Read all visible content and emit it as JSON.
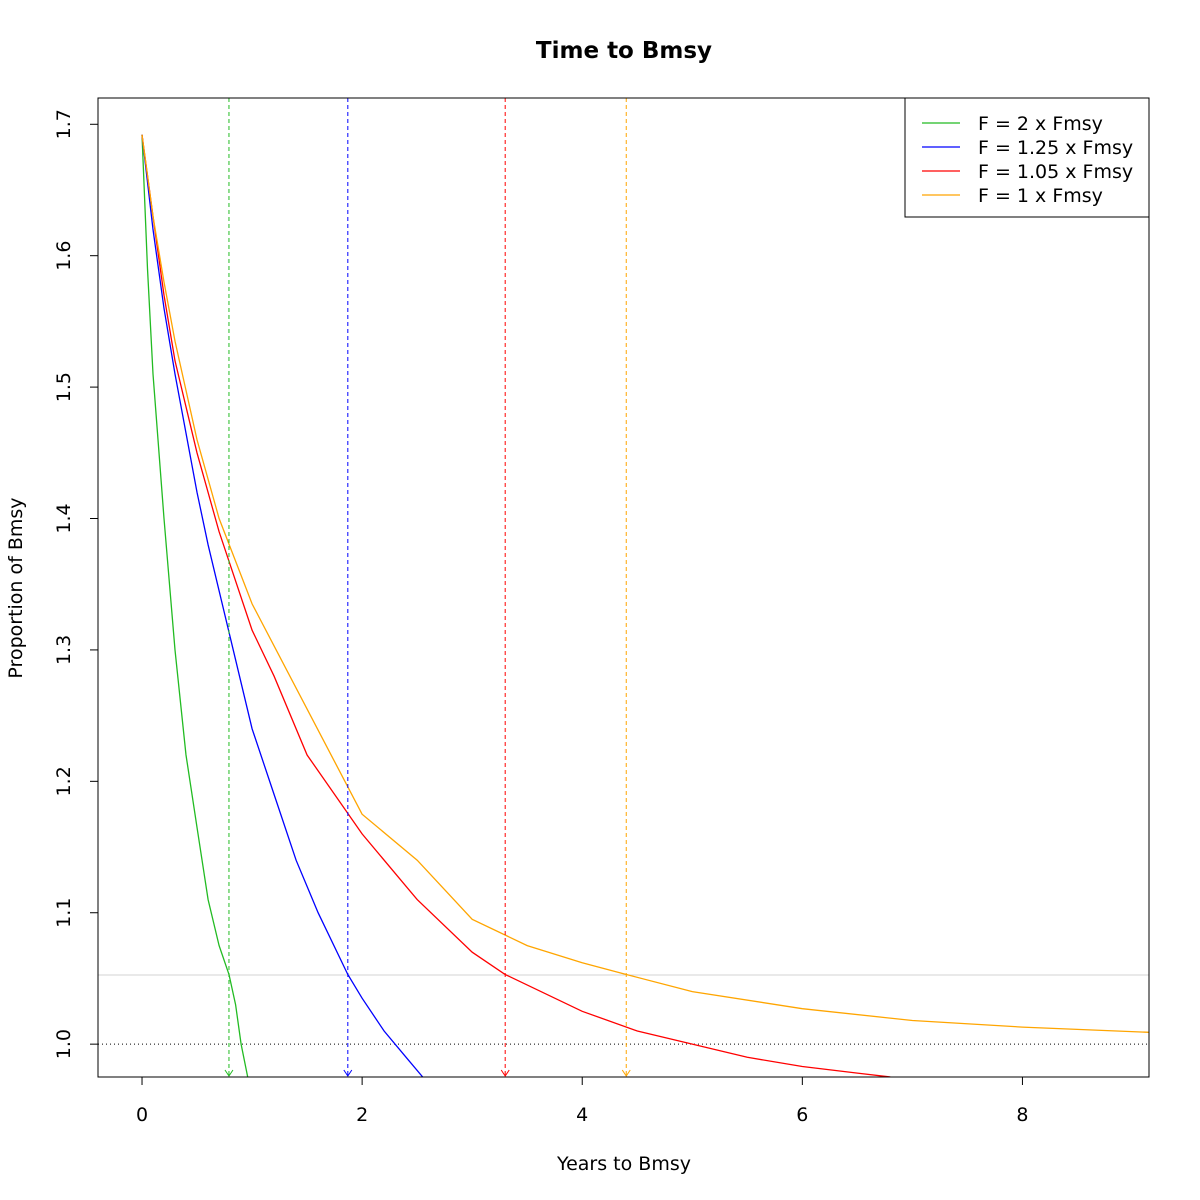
{
  "chart_data": {
    "type": "line",
    "title": "Time to Bmsy",
    "xlabel": "Years to Bmsy",
    "ylabel": "Proportion of Bmsy",
    "xlim": [
      -0.4,
      9.15
    ],
    "ylim": [
      0.975,
      1.72
    ],
    "x_ticks": [
      "0",
      "2",
      "4",
      "6",
      "8"
    ],
    "y_ticks": [
      "1.0",
      "1.1",
      "1.2",
      "1.3",
      "1.4",
      "1.5",
      "1.6",
      "1.7"
    ],
    "x_tick_values": [
      0,
      2,
      4,
      6,
      8
    ],
    "y_tick_values": [
      1.0,
      1.1,
      1.2,
      1.3,
      1.4,
      1.5,
      1.6,
      1.7
    ],
    "grid": false,
    "legend_position": "top-right",
    "reference_lines": {
      "target": 1.0,
      "threshold": 1.0526
    },
    "series": [
      {
        "name": "F = 2 x Fmsy",
        "color": "#22bb22",
        "time_to_target": 0.79,
        "x": [
          0,
          0.05,
          0.1,
          0.2,
          0.3,
          0.4,
          0.5,
          0.6,
          0.7,
          0.79,
          0.85,
          0.9,
          0.96
        ],
        "y": [
          1.692,
          1.59,
          1.51,
          1.4,
          1.3,
          1.22,
          1.165,
          1.11,
          1.075,
          1.053,
          1.03,
          1.0,
          0.975
        ]
      },
      {
        "name": "F = 1.25 x Fmsy",
        "color": "#0000ff",
        "time_to_target": 1.87,
        "x": [
          0,
          0.1,
          0.2,
          0.3,
          0.4,
          0.5,
          0.6,
          0.8,
          1.0,
          1.2,
          1.4,
          1.6,
          1.87,
          2.0,
          2.2,
          2.4,
          2.55
        ],
        "y": [
          1.692,
          1.62,
          1.56,
          1.51,
          1.465,
          1.42,
          1.38,
          1.31,
          1.24,
          1.19,
          1.14,
          1.1,
          1.053,
          1.035,
          1.01,
          0.99,
          0.975
        ]
      },
      {
        "name": "F = 1.05 x Fmsy",
        "color": "#ff0000",
        "time_to_target": 3.3,
        "x": [
          0,
          0.1,
          0.2,
          0.3,
          0.5,
          0.7,
          1.0,
          1.2,
          1.5,
          2.0,
          2.5,
          3.0,
          3.3,
          4.0,
          4.5,
          5.0,
          5.5,
          6.0,
          6.5,
          6.8
        ],
        "y": [
          1.692,
          1.63,
          1.57,
          1.52,
          1.45,
          1.39,
          1.315,
          1.28,
          1.22,
          1.16,
          1.11,
          1.07,
          1.053,
          1.025,
          1.01,
          1.0,
          0.99,
          0.983,
          0.978,
          0.975
        ]
      },
      {
        "name": "F = 1 x Fmsy",
        "color": "#ffa500",
        "time_to_target": 4.4,
        "x": [
          0,
          0.1,
          0.2,
          0.3,
          0.5,
          0.7,
          1.0,
          1.5,
          2.0,
          2.5,
          3.0,
          3.5,
          4.0,
          4.4,
          5.0,
          6.0,
          7.0,
          8.0,
          9.15
        ],
        "y": [
          1.692,
          1.63,
          1.58,
          1.535,
          1.46,
          1.4,
          1.335,
          1.255,
          1.175,
          1.14,
          1.095,
          1.075,
          1.062,
          1.053,
          1.04,
          1.027,
          1.018,
          1.013,
          1.009
        ]
      }
    ]
  }
}
